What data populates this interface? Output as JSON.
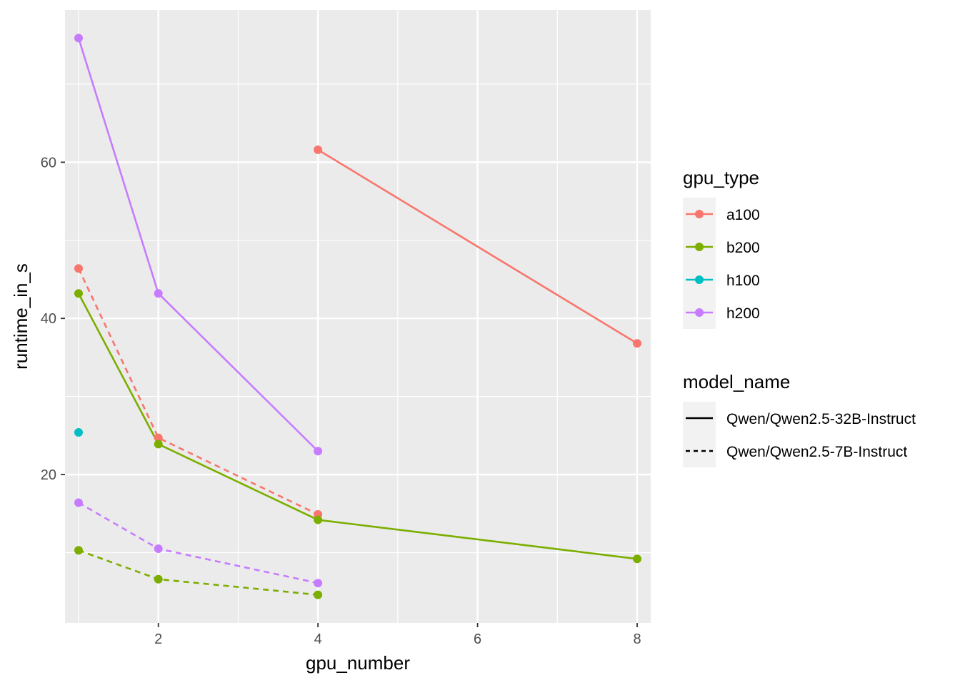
{
  "chart_data": {
    "type": "line",
    "xlabel": "gpu_number",
    "ylabel": "runtime_in_s",
    "xlim": [
      0.83,
      8.17
    ],
    "ylim": [
      1.0,
      79.5
    ],
    "xticks": [
      2,
      4,
      6,
      8
    ],
    "yticks": [
      20,
      40,
      60
    ],
    "grid": true,
    "legend_position": "right",
    "legends": [
      {
        "title": "gpu_type",
        "kind": "color",
        "entries": [
          {
            "label": "a100",
            "color": "#F8766D"
          },
          {
            "label": "b200",
            "color": "#7CAE00"
          },
          {
            "label": "h100",
            "color": "#00BFC4"
          },
          {
            "label": "h200",
            "color": "#C77CFF"
          }
        ]
      },
      {
        "title": "model_name",
        "kind": "linetype",
        "entries": [
          {
            "label": "Qwen/Qwen2.5-32B-Instruct",
            "linetype": "solid"
          },
          {
            "label": "Qwen/Qwen2.5-7B-Instruct",
            "linetype": "dashed"
          }
        ]
      }
    ],
    "series": [
      {
        "gpu_type": "a100",
        "model": "Qwen/Qwen2.5-32B-Instruct",
        "color": "#F8766D",
        "linetype": "solid",
        "x": [
          4,
          8
        ],
        "y": [
          61.6,
          36.8
        ]
      },
      {
        "gpu_type": "a100",
        "model": "Qwen/Qwen2.5-7B-Instruct",
        "color": "#F8766D",
        "linetype": "dashed",
        "x": [
          1,
          2,
          4
        ],
        "y": [
          46.4,
          24.7,
          14.9
        ]
      },
      {
        "gpu_type": "b200",
        "model": "Qwen/Qwen2.5-32B-Instruct",
        "color": "#7CAE00",
        "linetype": "solid",
        "x": [
          1,
          2,
          4,
          8
        ],
        "y": [
          43.2,
          23.9,
          14.2,
          9.2
        ]
      },
      {
        "gpu_type": "b200",
        "model": "Qwen/Qwen2.5-7B-Instruct",
        "color": "#7CAE00",
        "linetype": "dashed",
        "x": [
          1,
          2,
          4
        ],
        "y": [
          10.3,
          6.6,
          4.6
        ]
      },
      {
        "gpu_type": "h100",
        "model": "Qwen/Qwen2.5-32B-Instruct",
        "color": "#00BFC4",
        "linetype": "solid",
        "x": [
          1
        ],
        "y": [
          25.4
        ]
      },
      {
        "gpu_type": "h200",
        "model": "Qwen/Qwen2.5-32B-Instruct",
        "color": "#C77CFF",
        "linetype": "solid",
        "x": [
          1,
          2,
          4
        ],
        "y": [
          75.9,
          43.2,
          23.0
        ]
      },
      {
        "gpu_type": "h200",
        "model": "Qwen/Qwen2.5-7B-Instruct",
        "color": "#C77CFF",
        "linetype": "dashed",
        "x": [
          1,
          2,
          4
        ],
        "y": [
          16.4,
          10.5,
          6.1
        ]
      }
    ]
  }
}
